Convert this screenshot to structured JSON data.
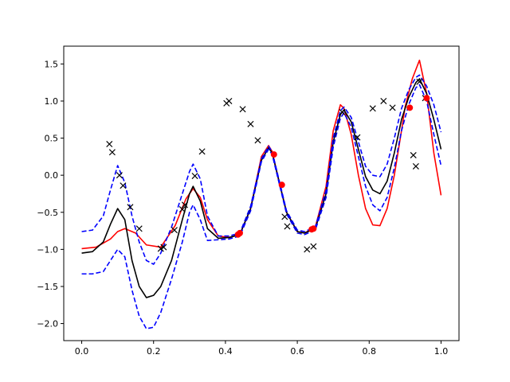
{
  "chart_data": {
    "type": "line",
    "title": "",
    "xlabel": "",
    "ylabel": "",
    "xlim": [
      -0.05,
      1.05
    ],
    "ylim": [
      -2.23,
      1.74
    ],
    "x_ticks": [
      0.0,
      0.2,
      0.4,
      0.6,
      0.8,
      1.0
    ],
    "x_tick_labels": [
      "0.0",
      "0.2",
      "0.4",
      "0.6",
      "0.8",
      "1.0"
    ],
    "y_ticks": [
      -2.0,
      -1.5,
      -1.0,
      -0.5,
      0.0,
      0.5,
      1.0,
      1.5
    ],
    "y_tick_labels": [
      "−2.0",
      "−1.5",
      "−1.0",
      "−0.5",
      "0.0",
      "0.5",
      "1.0",
      "1.5"
    ],
    "grid": false,
    "legend": "none",
    "series": [
      {
        "style": "line",
        "color": "#ff0000",
        "dash": "solid",
        "x": [
          0.0,
          0.04,
          0.08,
          0.1,
          0.12,
          0.15,
          0.18,
          0.22,
          0.26,
          0.29,
          0.31,
          0.33,
          0.35,
          0.38,
          0.41,
          0.44,
          0.47,
          0.5,
          0.52,
          0.53,
          0.55,
          0.57,
          0.6,
          0.62,
          0.65,
          0.68,
          0.7,
          0.72,
          0.73,
          0.75,
          0.77,
          0.79,
          0.81,
          0.83,
          0.85,
          0.87,
          0.89,
          0.9,
          0.92,
          0.94,
          0.96,
          0.98,
          1.0
        ],
        "y": [
          -0.99,
          -0.97,
          -0.86,
          -0.76,
          -0.72,
          -0.78,
          -0.94,
          -0.97,
          -0.68,
          -0.32,
          -0.18,
          -0.3,
          -0.6,
          -0.82,
          -0.84,
          -0.8,
          -0.45,
          0.25,
          0.4,
          0.32,
          -0.1,
          -0.5,
          -0.76,
          -0.78,
          -0.7,
          -0.15,
          0.6,
          0.95,
          0.9,
          0.55,
          0.0,
          -0.45,
          -0.67,
          -0.68,
          -0.45,
          0.0,
          0.6,
          0.92,
          1.3,
          1.55,
          1.1,
          0.3,
          -0.27
        ]
      },
      {
        "style": "line",
        "color": "#000000",
        "dash": "solid",
        "x": [
          0.0,
          0.03,
          0.06,
          0.08,
          0.1,
          0.12,
          0.14,
          0.16,
          0.18,
          0.2,
          0.22,
          0.25,
          0.28,
          0.3,
          0.31,
          0.33,
          0.35,
          0.38,
          0.41,
          0.44,
          0.47,
          0.5,
          0.52,
          0.53,
          0.55,
          0.57,
          0.6,
          0.62,
          0.65,
          0.68,
          0.7,
          0.72,
          0.73,
          0.75,
          0.77,
          0.79,
          0.81,
          0.83,
          0.85,
          0.87,
          0.89,
          0.91,
          0.93,
          0.94,
          0.96,
          0.98,
          1.0
        ],
        "y": [
          -1.05,
          -1.03,
          -0.9,
          -0.66,
          -0.45,
          -0.6,
          -1.15,
          -1.5,
          -1.65,
          -1.62,
          -1.5,
          -1.15,
          -0.6,
          -0.25,
          -0.15,
          -0.35,
          -0.72,
          -0.85,
          -0.84,
          -0.8,
          -0.45,
          0.2,
          0.37,
          0.3,
          -0.1,
          -0.5,
          -0.76,
          -0.78,
          -0.72,
          -0.25,
          0.45,
          0.82,
          0.88,
          0.72,
          0.35,
          -0.02,
          -0.2,
          -0.25,
          -0.08,
          0.3,
          0.75,
          1.05,
          1.25,
          1.3,
          1.1,
          0.75,
          0.35
        ]
      },
      {
        "style": "line",
        "color": "#0000ff",
        "dash": "dashed",
        "x": [
          0.0,
          0.03,
          0.06,
          0.08,
          0.1,
          0.12,
          0.14,
          0.16,
          0.18,
          0.2,
          0.22,
          0.25,
          0.28,
          0.3,
          0.31,
          0.33,
          0.35,
          0.38,
          0.41,
          0.44,
          0.47,
          0.5,
          0.52,
          0.53,
          0.55,
          0.57,
          0.6,
          0.62,
          0.65,
          0.68,
          0.7,
          0.72,
          0.73,
          0.75,
          0.77,
          0.79,
          0.81,
          0.83,
          0.85,
          0.87,
          0.89,
          0.91,
          0.93,
          0.94,
          0.96,
          0.98,
          1.0
        ],
        "y": [
          -0.76,
          -0.74,
          -0.55,
          -0.2,
          0.13,
          -0.1,
          -0.55,
          -0.9,
          -1.15,
          -1.2,
          -1.05,
          -0.7,
          -0.25,
          0.05,
          0.15,
          -0.05,
          -0.55,
          -0.82,
          -0.82,
          -0.78,
          -0.42,
          0.22,
          0.39,
          0.32,
          -0.08,
          -0.48,
          -0.74,
          -0.76,
          -0.7,
          -0.2,
          0.5,
          0.87,
          0.92,
          0.78,
          0.45,
          0.12,
          0.0,
          -0.02,
          0.15,
          0.5,
          0.9,
          1.15,
          1.32,
          1.35,
          1.2,
          0.95,
          0.58
        ]
      },
      {
        "style": "line",
        "color": "#0000ff",
        "dash": "dashed",
        "x": [
          0.0,
          0.03,
          0.06,
          0.08,
          0.1,
          0.12,
          0.14,
          0.16,
          0.18,
          0.2,
          0.22,
          0.25,
          0.28,
          0.3,
          0.31,
          0.33,
          0.35,
          0.38,
          0.41,
          0.44,
          0.47,
          0.5,
          0.52,
          0.53,
          0.55,
          0.57,
          0.6,
          0.62,
          0.65,
          0.68,
          0.7,
          0.72,
          0.73,
          0.75,
          0.77,
          0.79,
          0.81,
          0.83,
          0.85,
          0.87,
          0.89,
          0.91,
          0.93,
          0.94,
          0.96,
          0.98,
          1.0
        ],
        "y": [
          -1.33,
          -1.33,
          -1.3,
          -1.15,
          -1.0,
          -1.1,
          -1.55,
          -1.9,
          -2.07,
          -2.05,
          -1.85,
          -1.4,
          -0.9,
          -0.5,
          -0.4,
          -0.6,
          -0.88,
          -0.87,
          -0.86,
          -0.82,
          -0.48,
          0.18,
          0.35,
          0.28,
          -0.12,
          -0.52,
          -0.78,
          -0.8,
          -0.74,
          -0.3,
          0.38,
          0.77,
          0.84,
          0.65,
          0.25,
          -0.15,
          -0.4,
          -0.48,
          -0.3,
          0.1,
          0.6,
          0.95,
          1.18,
          1.22,
          1.0,
          0.55,
          0.13
        ]
      },
      {
        "style": "scatter",
        "marker": "x",
        "color": "#000000",
        "x": [
          0.077,
          0.085,
          0.105,
          0.115,
          0.135,
          0.16,
          0.22,
          0.228,
          0.258,
          0.28,
          0.287,
          0.315,
          0.335,
          0.403,
          0.41,
          0.448,
          0.47,
          0.49,
          0.565,
          0.572,
          0.627,
          0.645,
          0.725,
          0.767,
          0.81,
          0.84,
          0.865,
          0.923,
          0.93,
          0.94,
          0.956
        ],
        "y": [
          0.42,
          0.31,
          0.0,
          -0.14,
          -0.43,
          -0.72,
          -0.99,
          -0.97,
          -0.74,
          -0.46,
          -0.4,
          -0.01,
          0.32,
          0.97,
          1.0,
          0.89,
          0.69,
          0.47,
          -0.56,
          -0.69,
          -1.0,
          -0.96,
          0.85,
          0.51,
          0.9,
          1.0,
          0.91,
          0.27,
          0.12,
          1.26,
          1.04
        ]
      },
      {
        "style": "scatter",
        "marker": "o",
        "color": "#ff0000",
        "x": [
          0.435,
          0.44,
          0.535,
          0.557,
          0.64,
          0.645,
          0.913,
          0.96
        ],
        "y": [
          -0.8,
          -0.78,
          0.28,
          -0.13,
          -0.73,
          -0.72,
          0.91,
          1.04
        ]
      }
    ]
  }
}
